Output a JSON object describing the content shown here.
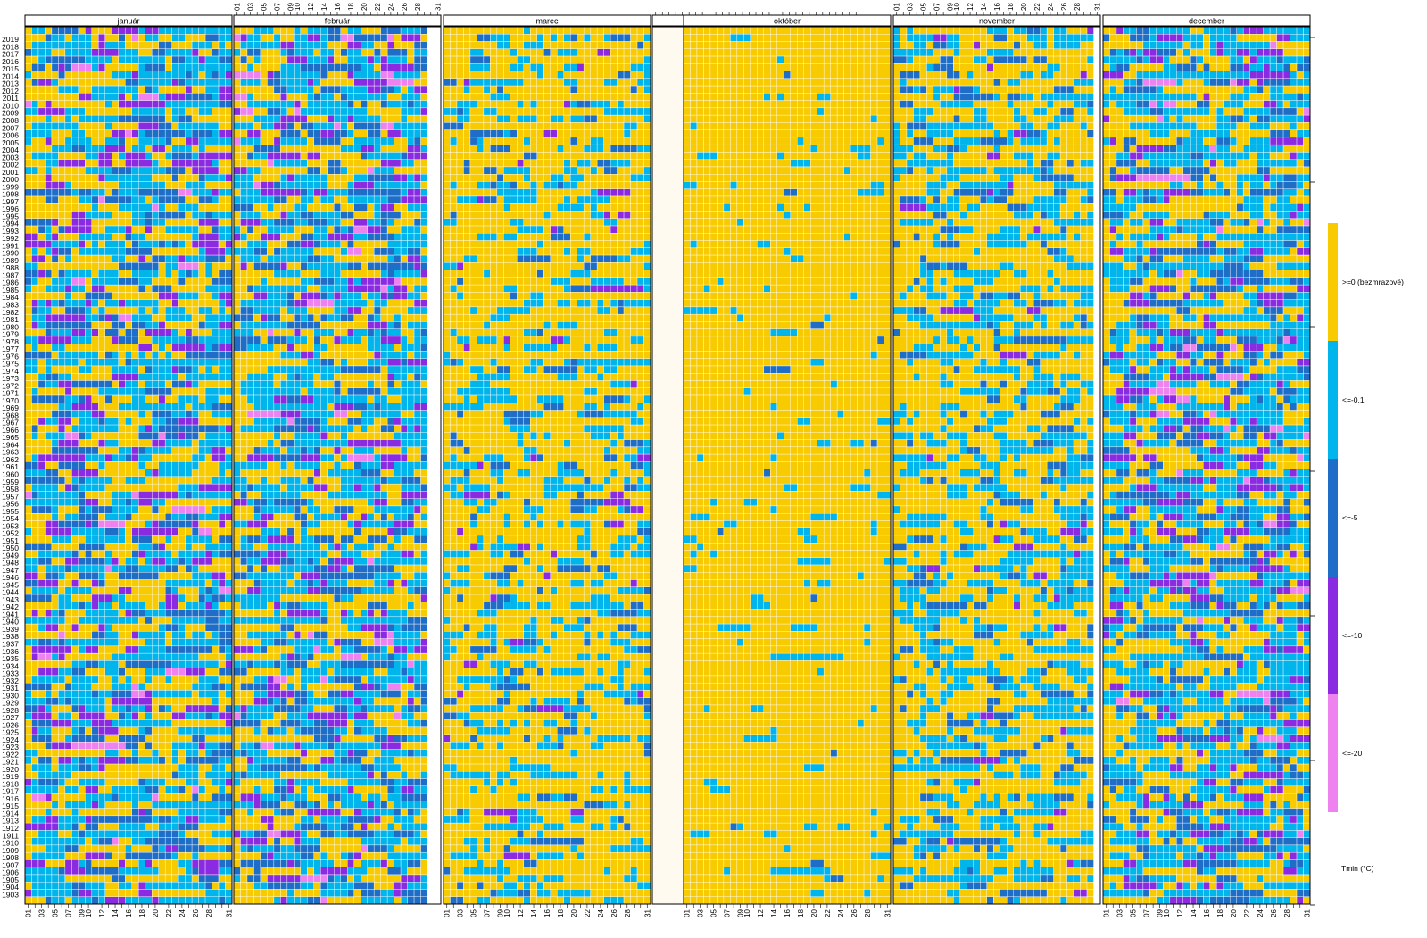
{
  "chart_data": {
    "type": "heatmap",
    "title": "",
    "xlabel": "",
    "ylabel": "",
    "panels": [
      {
        "name": "január",
        "days": 31,
        "pattern": "winter"
      },
      {
        "name": "február",
        "days": 29,
        "pattern": "winter"
      },
      {
        "name": "marec",
        "days": 31,
        "pattern": "spring"
      },
      {
        "name": "",
        "days": 31,
        "pattern": "empty"
      },
      {
        "name": "október",
        "days": 31,
        "pattern": "autumn"
      },
      {
        "name": "november",
        "days": 30,
        "pattern": "late-autumn"
      },
      {
        "name": "december",
        "days": 31,
        "pattern": "winter"
      }
    ],
    "years_first": 1901,
    "years_last": 2019,
    "years_labelled_first": 1903,
    "years_labelled_last": 2019,
    "day_ticks": [
      "01",
      "02",
      "03",
      "04",
      "05",
      "06",
      "07",
      "08",
      "09",
      "10",
      "11",
      "12",
      "13",
      "14",
      "15",
      "16",
      "17",
      "18",
      "19",
      "20",
      "21",
      "22",
      "23",
      "24",
      "25",
      "26",
      "27",
      "28",
      "29",
      "30",
      "31"
    ],
    "day_tick_labels_printed": [
      "01",
      "03",
      "05",
      "07",
      "09",
      "10",
      "12",
      "14",
      "16",
      "18",
      "20",
      "22",
      "24",
      "26",
      "28",
      "31"
    ],
    "categories": [
      {
        "label": ">=0 (bezmrazové)",
        "color": "#f8ca00"
      },
      {
        "label": "<=-0.1",
        "color": "#00b4ec"
      },
      {
        "label": "<=-5",
        "color": "#1e6ec8"
      },
      {
        "label": "<=-10",
        "color": "#8a2be2"
      },
      {
        "label": "<=-20",
        "color": "#ee82ee"
      }
    ],
    "category_probabilities": {
      "winter": [
        0.3,
        0.4,
        0.17,
        0.11,
        0.02
      ],
      "spring": [
        0.64,
        0.27,
        0.07,
        0.02,
        0.0
      ],
      "autumn": [
        0.93,
        0.065,
        0.005,
        0.0,
        0.0
      ],
      "late-autumn": [
        0.55,
        0.33,
        0.1,
        0.02,
        0.0
      ]
    },
    "legend_title": "Tmin (°C)",
    "legend_position": "right",
    "empty_panel_color": "#fffaef",
    "grid": true
  }
}
